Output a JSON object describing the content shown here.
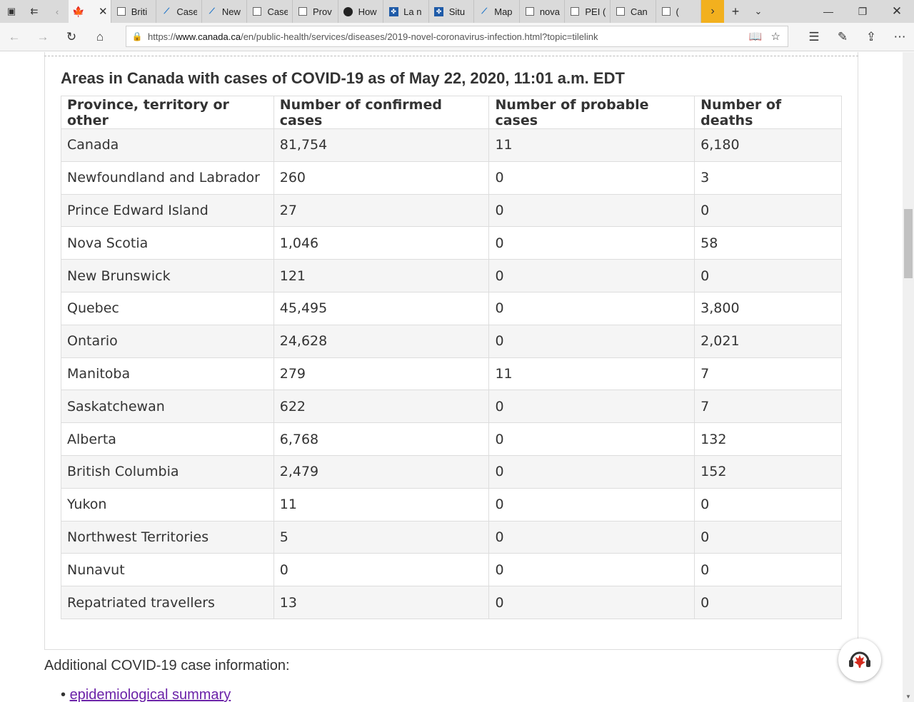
{
  "browser": {
    "tabs": [
      {
        "label": "",
        "icon": "canada-flag-icon",
        "active": true
      },
      {
        "label": "Briti",
        "icon": "page-icon"
      },
      {
        "label": "Case",
        "icon": "chart-icon"
      },
      {
        "label": "New",
        "icon": "chart-icon"
      },
      {
        "label": "Case",
        "icon": "page-icon"
      },
      {
        "label": "Prov",
        "icon": "page-icon"
      },
      {
        "label": "How",
        "icon": "shield-icon"
      },
      {
        "label": "La n",
        "icon": "quebec-icon"
      },
      {
        "label": "Situ",
        "icon": "quebec-icon"
      },
      {
        "label": "Map",
        "icon": "chart-icon"
      },
      {
        "label": "nova",
        "icon": "page-icon"
      },
      {
        "label": "PEI (",
        "icon": "page-icon"
      },
      {
        "label": "Can",
        "icon": "page-icon"
      },
      {
        "label": "(",
        "icon": "page-icon"
      }
    ],
    "url_prefix": "https://",
    "url_domain": "www.canada.ca",
    "url_path": "/en/public-health/services/diseases/2019-novel-coronavirus-infection.html?topic=tilelink"
  },
  "page": {
    "caption": "Areas in Canada with cases of COVID-19 as of May 22, 2020, 11:01 a.m. EDT",
    "headers": [
      "Province, territory or other",
      "Number of confirmed cases",
      "Number of probable cases",
      "Number of deaths"
    ],
    "rows": [
      [
        "Canada",
        "81,754",
        "11",
        "6,180"
      ],
      [
        "Newfoundland and Labrador",
        "260",
        "0",
        "3"
      ],
      [
        "Prince Edward Island",
        "27",
        "0",
        "0"
      ],
      [
        "Nova Scotia",
        "1,046",
        "0",
        "58"
      ],
      [
        "New Brunswick",
        "121",
        "0",
        "0"
      ],
      [
        "Quebec",
        "45,495",
        "0",
        "3,800"
      ],
      [
        "Ontario",
        "24,628",
        "0",
        "2,021"
      ],
      [
        "Manitoba",
        "279",
        "11",
        "7"
      ],
      [
        "Saskatchewan",
        "622",
        "0",
        "7"
      ],
      [
        "Alberta",
        "6,768",
        "0",
        "132"
      ],
      [
        "British Columbia",
        "2,479",
        "0",
        "152"
      ],
      [
        "Yukon",
        "11",
        "0",
        "0"
      ],
      [
        "Northwest Territories",
        "5",
        "0",
        "0"
      ],
      [
        "Nunavut",
        "0",
        "0",
        "0"
      ],
      [
        "Repatriated travellers",
        "13",
        "0",
        "0"
      ]
    ],
    "additional_heading": "Additional COVID-19 case information:",
    "link_text": "epidemiological summary",
    "link_color": "#6b22a8"
  }
}
